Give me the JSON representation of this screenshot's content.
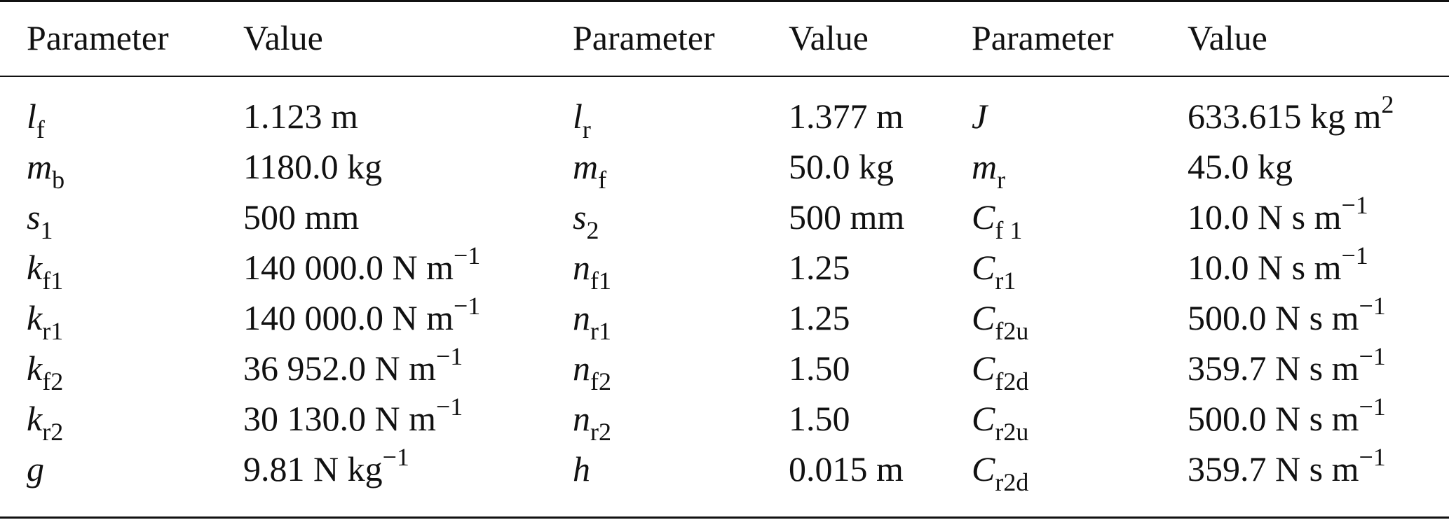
{
  "headers": [
    "Parameter",
    "Value",
    "Parameter",
    "Value",
    "Parameter",
    "Value"
  ],
  "rows": [
    [
      {
        "main": "l",
        "sub": "f"
      },
      {
        "text": "1.123 m",
        "sup": ""
      },
      {
        "main": "l",
        "sub": "r"
      },
      {
        "text": "1.377 m",
        "sup": ""
      },
      {
        "main": "J",
        "sub": ""
      },
      {
        "text": "633.615 kg m",
        "sup": "2"
      }
    ],
    [
      {
        "main": "m",
        "sub": "b"
      },
      {
        "text": "1180.0 kg",
        "sup": ""
      },
      {
        "main": "m",
        "sub": "f"
      },
      {
        "text": "50.0 kg",
        "sup": ""
      },
      {
        "main": "m",
        "sub": "r"
      },
      {
        "text": "45.0 kg",
        "sup": ""
      }
    ],
    [
      {
        "main": "s",
        "sub": "1"
      },
      {
        "text": "500 mm",
        "sup": ""
      },
      {
        "main": "s",
        "sub": "2"
      },
      {
        "text": "500 mm",
        "sup": ""
      },
      {
        "main": "C",
        "sub": "f 1"
      },
      {
        "text": "10.0 N s m",
        "sup": "−1"
      }
    ],
    [
      {
        "main": "k",
        "sub": "f1"
      },
      {
        "text": "140 000.0 N m",
        "sup": "−1"
      },
      {
        "main": "n",
        "sub": "f1"
      },
      {
        "text": "1.25",
        "sup": ""
      },
      {
        "main": "C",
        "sub": "r1"
      },
      {
        "text": "10.0 N s m",
        "sup": "−1"
      }
    ],
    [
      {
        "main": "k",
        "sub": "r1"
      },
      {
        "text": "140 000.0 N m",
        "sup": "−1"
      },
      {
        "main": "n",
        "sub": "r1"
      },
      {
        "text": "1.25",
        "sup": ""
      },
      {
        "main": "C",
        "sub": "f2u"
      },
      {
        "text": "500.0 N s m",
        "sup": "−1"
      }
    ],
    [
      {
        "main": "k",
        "sub": "f2"
      },
      {
        "text": "36 952.0 N m",
        "sup": "−1"
      },
      {
        "main": "n",
        "sub": "f2"
      },
      {
        "text": "1.50",
        "sup": ""
      },
      {
        "main": "C",
        "sub": "f2d"
      },
      {
        "text": "359.7 N s m",
        "sup": "−1"
      }
    ],
    [
      {
        "main": "k",
        "sub": "r2"
      },
      {
        "text": "30 130.0 N m",
        "sup": "−1"
      },
      {
        "main": "n",
        "sub": "r2"
      },
      {
        "text": "1.50",
        "sup": ""
      },
      {
        "main": "C",
        "sub": "r2u"
      },
      {
        "text": "500.0 N s m",
        "sup": "−1"
      }
    ],
    [
      {
        "main": "g",
        "sub": ""
      },
      {
        "text": "9.81 N kg",
        "sup": "−1"
      },
      {
        "main": "h",
        "sub": ""
      },
      {
        "text": "0.015 m",
        "sup": ""
      },
      {
        "main": "C",
        "sub": "r2d"
      },
      {
        "text": "359.7 N s m",
        "sup": "−1"
      }
    ]
  ]
}
